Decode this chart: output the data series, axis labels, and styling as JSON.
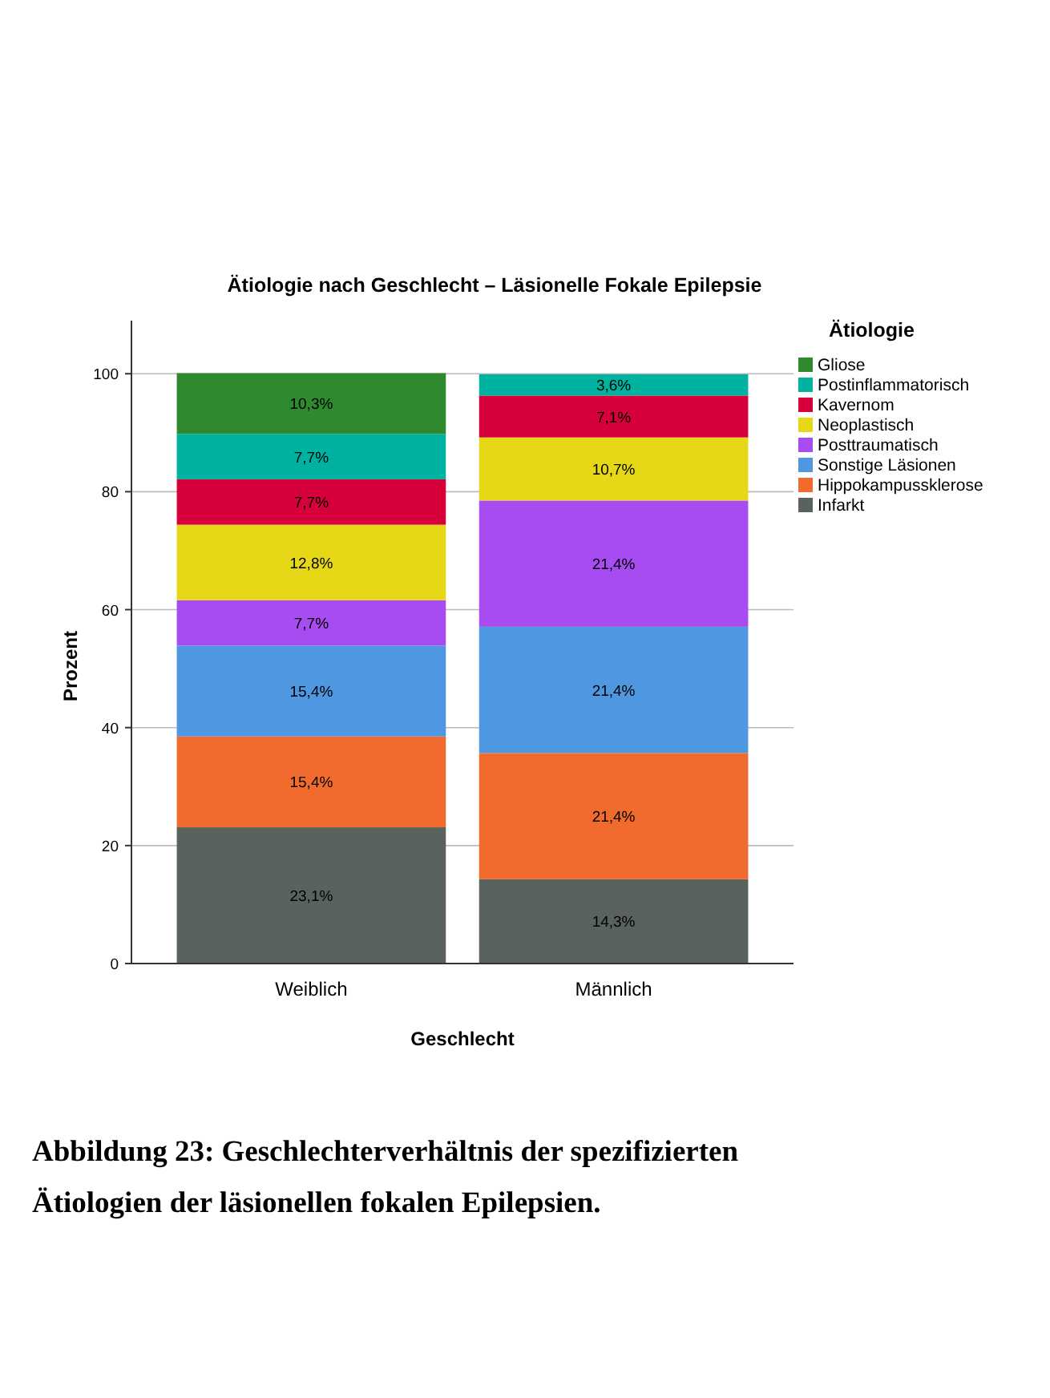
{
  "chart_data": {
    "type": "bar",
    "title": "Ätiologie nach Geschlecht – Läsionelle Fokale Epilepsie",
    "xlabel": "Geschlecht",
    "ylabel": "Prozent",
    "legend_title": "Ätiologie",
    "categories": [
      "Weiblich",
      "Männlich"
    ],
    "stacked": true,
    "ylim": [
      0,
      109
    ],
    "yticks": [
      0,
      20,
      40,
      60,
      80,
      100
    ],
    "grid": "y",
    "legend": "right",
    "series": [
      {
        "name": "Infarkt",
        "color": "#5a625d",
        "values": [
          23.1,
          14.3
        ],
        "value_labels": [
          "23,1%",
          "14,3%"
        ]
      },
      {
        "name": "Hippokampussklerose",
        "color": "#f26b2e",
        "values": [
          15.4,
          21.4
        ],
        "value_labels": [
          "15,4%",
          "21,4%"
        ]
      },
      {
        "name": "Sonstige Läsionen",
        "color": "#4f97e0",
        "values": [
          15.4,
          21.4
        ],
        "value_labels": [
          "15,4%",
          "21,4%"
        ]
      },
      {
        "name": "Posttraumatisch",
        "color": "#a64cf0",
        "values": [
          7.7,
          21.4
        ],
        "value_labels": [
          "7,7%",
          "21,4%"
        ]
      },
      {
        "name": "Neoplastisch",
        "color": "#e6d817",
        "values": [
          12.8,
          10.7
        ],
        "value_labels": [
          "12,8%",
          "10,7%"
        ]
      },
      {
        "name": "Kavernom",
        "color": "#d6003a",
        "values": [
          7.7,
          7.1
        ],
        "value_labels": [
          "7,7%",
          "7,1%"
        ]
      },
      {
        "name": "Postinflammatorisch",
        "color": "#00b3a0",
        "values": [
          7.7,
          3.6
        ],
        "value_labels": [
          "7,7%",
          "3,6%"
        ]
      },
      {
        "name": "Gliose",
        "color": "#2f8a2f",
        "values": [
          10.3,
          null
        ],
        "value_labels": [
          "10,3%",
          null
        ]
      }
    ],
    "annotations": [
      "Abbildung 23: Geschlechterverhältnis der spezifizierten Ätiologien der läsionellen fokalen Epilepsien."
    ]
  }
}
